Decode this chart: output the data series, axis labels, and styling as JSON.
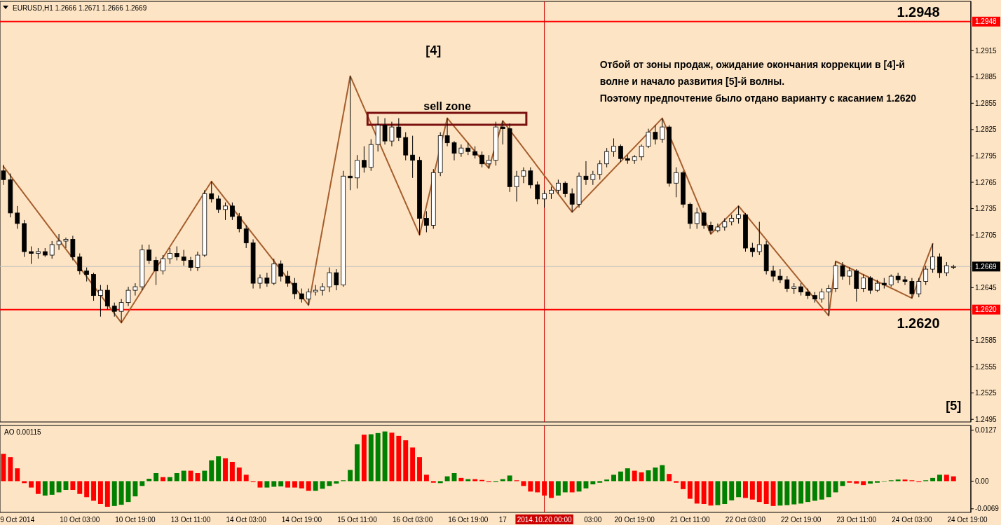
{
  "chart_data": [
    {
      "type": "candlestick",
      "title": "EURUSD,H1  1.2666 1.2671 1.2666 1.2669",
      "tick_labels": "y",
      "categories": [
        null,
        null,
        "9 Oct 2014",
        null,
        null,
        null,
        null,
        null,
        null,
        null,
        null,
        "10 Oct 03:00",
        null,
        null,
        null,
        null,
        null,
        null,
        null,
        "10 Oct 19:00",
        null,
        null,
        null,
        null,
        null,
        null,
        null,
        "13 Oct 11:00",
        null,
        null,
        null,
        null,
        null,
        null,
        null,
        "14 Oct 03:00",
        null,
        null,
        null,
        null,
        null,
        null,
        null,
        "14 Oct 19:00",
        null,
        null,
        null,
        null,
        null,
        null,
        null,
        "15 Oct 11:00",
        null,
        null,
        null,
        null,
        null,
        null,
        null,
        "16 Oct 03:00",
        null,
        null,
        null,
        null,
        null,
        null,
        null,
        "16 Oct 19:00",
        null,
        null,
        null,
        null,
        "17",
        null,
        null,
        null,
        null,
        null,
        "2014.10.20 00:00",
        null,
        null,
        null,
        null,
        null,
        null,
        "03:00",
        null,
        null,
        null,
        null,
        null,
        "20 Oct 19:00",
        null,
        null,
        null,
        null,
        null,
        null,
        null,
        "21 Oct 11:00",
        null,
        null,
        null,
        null,
        null,
        null,
        null,
        "22 Oct 03:00",
        null,
        null,
        null,
        null,
        null,
        null,
        null,
        "22 Oct 19:00",
        null,
        null,
        null,
        null,
        null,
        null,
        null,
        "23 Oct 11:00",
        null,
        null,
        null,
        null,
        null,
        null,
        null,
        "24 Oct 03:00",
        null,
        null,
        null,
        null,
        null,
        null,
        null,
        "24 Oct 19:00"
      ],
      "ohlc": [
        [
          1.2778,
          1.2785,
          1.2762,
          1.2768
        ],
        [
          1.2768,
          1.2775,
          1.2725,
          1.273
        ],
        [
          1.273,
          1.2738,
          1.2712,
          1.2718
        ],
        [
          1.2718,
          1.2722,
          1.268,
          1.2686
        ],
        [
          1.2686,
          1.2692,
          1.2672,
          1.2684
        ],
        [
          1.2684,
          1.269,
          1.2678,
          1.2686
        ],
        [
          1.2686,
          1.269,
          1.268,
          1.2682
        ],
        [
          1.2682,
          1.2698,
          1.2678,
          1.2694
        ],
        [
          1.2694,
          1.2706,
          1.2688,
          1.2698
        ],
        [
          1.2698,
          1.2702,
          1.269,
          1.27
        ],
        [
          1.27,
          1.2704,
          1.2676,
          1.268
        ],
        [
          1.268,
          1.2684,
          1.266,
          1.2664
        ],
        [
          1.2664,
          1.2668,
          1.2652,
          1.266
        ],
        [
          1.266,
          1.2662,
          1.263,
          1.2636
        ],
        [
          1.2636,
          1.2648,
          1.2612,
          1.2642
        ],
        [
          1.2642,
          1.2648,
          1.262,
          1.2624
        ],
        [
          1.2624,
          1.2628,
          1.2612,
          1.2618
        ],
        [
          1.2618,
          1.2632,
          1.2605,
          1.2628
        ],
        [
          1.2628,
          1.2646,
          1.2624,
          1.2642
        ],
        [
          1.2642,
          1.265,
          1.2636,
          1.2646
        ],
        [
          1.2646,
          1.2694,
          1.2642,
          1.2688
        ],
        [
          1.2688,
          1.2694,
          1.2672,
          1.2676
        ],
        [
          1.2676,
          1.268,
          1.2648,
          1.2664
        ],
        [
          1.2664,
          1.2682,
          1.266,
          1.2678
        ],
        [
          1.2678,
          1.269,
          1.2672,
          1.2684
        ],
        [
          1.2684,
          1.2692,
          1.2676,
          1.268
        ],
        [
          1.268,
          1.2688,
          1.267,
          1.2676
        ],
        [
          1.2676,
          1.268,
          1.2664,
          1.2668
        ],
        [
          1.2668,
          1.2686,
          1.2664,
          1.2682
        ],
        [
          1.2682,
          1.2756,
          1.268,
          1.2752
        ],
        [
          1.2752,
          1.2766,
          1.2742,
          1.2746
        ],
        [
          1.2746,
          1.275,
          1.273,
          1.2734
        ],
        [
          1.2734,
          1.2742,
          1.2722,
          1.2738
        ],
        [
          1.2738,
          1.2742,
          1.2722,
          1.2726
        ],
        [
          1.2726,
          1.273,
          1.2708,
          1.2712
        ],
        [
          1.2712,
          1.2716,
          1.269,
          1.2696
        ],
        [
          1.2696,
          1.27,
          1.2644,
          1.265
        ],
        [
          1.265,
          1.266,
          1.2644,
          1.2656
        ],
        [
          1.2656,
          1.2662,
          1.2646,
          1.265
        ],
        [
          1.265,
          1.2678,
          1.2648,
          1.2672
        ],
        [
          1.2672,
          1.2676,
          1.2652,
          1.2658
        ],
        [
          1.2658,
          1.2664,
          1.2646,
          1.265
        ],
        [
          1.265,
          1.2656,
          1.2632,
          1.2638
        ],
        [
          1.2638,
          1.2644,
          1.2628,
          1.2632
        ],
        [
          1.2632,
          1.2644,
          1.2625,
          1.264
        ],
        [
          1.264,
          1.2648,
          1.2636,
          1.2642
        ],
        [
          1.2642,
          1.265,
          1.2636,
          1.2646
        ],
        [
          1.2646,
          1.2668,
          1.264,
          1.2662
        ],
        [
          1.2662,
          1.2666,
          1.2642,
          1.2648
        ],
        [
          1.2648,
          1.2778,
          1.2646,
          1.2772
        ],
        [
          1.2772,
          1.2886,
          1.2756,
          1.277
        ],
        [
          1.277,
          1.2796,
          1.2758,
          1.279
        ],
        [
          1.279,
          1.2806,
          1.2776,
          1.2782
        ],
        [
          1.2782,
          1.2814,
          1.2778,
          1.2808
        ],
        [
          1.2808,
          1.284,
          1.28,
          1.283
        ],
        [
          1.283,
          1.2838,
          1.2808,
          1.2812
        ],
        [
          1.2812,
          1.2834,
          1.2806,
          1.2828
        ],
        [
          1.2828,
          1.2838,
          1.2812,
          1.2816
        ],
        [
          1.2816,
          1.2822,
          1.279,
          1.2796
        ],
        [
          1.2796,
          1.2818,
          1.277,
          1.279
        ],
        [
          1.279,
          1.2794,
          1.2705,
          1.2724
        ],
        [
          1.2724,
          1.2732,
          1.2708,
          1.2716
        ],
        [
          1.2716,
          1.278,
          1.2712,
          1.2776
        ],
        [
          1.2776,
          1.2822,
          1.2772,
          1.2818
        ],
        [
          1.2818,
          1.2838,
          1.2806,
          1.281
        ],
        [
          1.281,
          1.2812,
          1.279,
          1.2798
        ],
        [
          1.2798,
          1.2808,
          1.2794,
          1.2804
        ],
        [
          1.2804,
          1.281,
          1.2796,
          1.28
        ],
        [
          1.28,
          1.2806,
          1.2792,
          1.2796
        ],
        [
          1.2796,
          1.28,
          1.2782,
          1.2786
        ],
        [
          1.2786,
          1.2796,
          1.2781,
          1.279
        ],
        [
          1.279,
          1.2834,
          1.2784,
          1.2828
        ],
        [
          1.2828,
          1.2835,
          1.2808,
          1.2826
        ],
        [
          1.2826,
          1.2832,
          1.2754,
          1.276
        ],
        [
          1.276,
          1.2778,
          1.2743,
          1.2772
        ],
        [
          1.2772,
          1.2782,
          1.2764,
          1.2778
        ],
        [
          1.2778,
          1.2782,
          1.2758,
          1.2762
        ],
        [
          1.2762,
          1.2766,
          1.274,
          1.2746
        ],
        [
          1.2746,
          1.2756,
          1.2736,
          1.2752
        ],
        [
          1.2752,
          1.276,
          1.2746,
          1.2756
        ],
        [
          1.2756,
          1.2768,
          1.2752,
          1.2764
        ],
        [
          1.2764,
          1.2766,
          1.2748,
          1.2752
        ],
        [
          1.2752,
          1.2758,
          1.2731,
          1.274
        ],
        [
          1.274,
          1.2776,
          1.2736,
          1.2772
        ],
        [
          1.2772,
          1.2789,
          1.2762,
          1.2768
        ],
        [
          1.2768,
          1.2778,
          1.2762,
          1.2774
        ],
        [
          1.2774,
          1.279,
          1.2768,
          1.2786
        ],
        [
          1.2786,
          1.2804,
          1.2782,
          1.28
        ],
        [
          1.28,
          1.2815,
          1.2794,
          1.2806
        ],
        [
          1.2806,
          1.2808,
          1.2788,
          1.2792
        ],
        [
          1.2792,
          1.2796,
          1.2786,
          1.279
        ],
        [
          1.279,
          1.2796,
          1.2786,
          1.2794
        ],
        [
          1.2794,
          1.2808,
          1.279,
          1.2806
        ],
        [
          1.2806,
          1.2826,
          1.2804,
          1.2822
        ],
        [
          1.2822,
          1.283,
          1.2808,
          1.2814
        ],
        [
          1.2814,
          1.2838,
          1.281,
          1.2828
        ],
        [
          1.2828,
          1.283,
          1.276,
          1.2764
        ],
        [
          1.2764,
          1.2782,
          1.2748,
          1.2776
        ],
        [
          1.2776,
          1.2778,
          1.2736,
          1.274
        ],
        [
          1.274,
          1.2742,
          1.2712,
          1.2718
        ],
        [
          1.2718,
          1.2736,
          1.2712,
          1.273
        ],
        [
          1.273,
          1.2732,
          1.2712,
          1.2716
        ],
        [
          1.2716,
          1.272,
          1.2706,
          1.271
        ],
        [
          1.271,
          1.2718,
          1.2708,
          1.2714
        ],
        [
          1.2714,
          1.2724,
          1.271,
          1.272
        ],
        [
          1.272,
          1.2728,
          1.2716,
          1.2724
        ],
        [
          1.2724,
          1.2738,
          1.2718,
          1.2728
        ],
        [
          1.2728,
          1.273,
          1.2686,
          1.269
        ],
        [
          1.269,
          1.2696,
          1.268,
          1.2686
        ],
        [
          1.2686,
          1.272,
          1.2682,
          1.2694
        ],
        [
          1.2694,
          1.2698,
          1.266,
          1.2664
        ],
        [
          1.2664,
          1.267,
          1.2652,
          1.2658
        ],
        [
          1.2658,
          1.2666,
          1.265,
          1.2654
        ],
        [
          1.2654,
          1.2658,
          1.264,
          1.2644
        ],
        [
          1.2644,
          1.265,
          1.2638,
          1.2646
        ],
        [
          1.2646,
          1.265,
          1.2636,
          1.264
        ],
        [
          1.264,
          1.2644,
          1.2632,
          1.2636
        ],
        [
          1.2636,
          1.264,
          1.2628,
          1.2632
        ],
        [
          1.2632,
          1.2644,
          1.2628,
          1.264
        ],
        [
          1.264,
          1.2648,
          1.2613,
          1.2644
        ],
        [
          1.2644,
          1.2675,
          1.264,
          1.267
        ],
        [
          1.267,
          1.2674,
          1.2654,
          1.2658
        ],
        [
          1.2658,
          1.2668,
          1.2648,
          1.2664
        ],
        [
          1.2664,
          1.2666,
          1.2629,
          1.2644
        ],
        [
          1.2644,
          1.266,
          1.264,
          1.2656
        ],
        [
          1.2656,
          1.2658,
          1.2638,
          1.2642
        ],
        [
          1.2642,
          1.2654,
          1.264,
          1.265
        ],
        [
          1.265,
          1.2656,
          1.2644,
          1.2648
        ],
        [
          1.2648,
          1.266,
          1.2646,
          1.2658
        ],
        [
          1.2658,
          1.2662,
          1.265,
          1.2654
        ],
        [
          1.2654,
          1.2658,
          1.2648,
          1.2652
        ],
        [
          1.2652,
          1.2656,
          1.2633,
          1.2638
        ],
        [
          1.2638,
          1.2656,
          1.2634,
          1.2652
        ],
        [
          1.2652,
          1.267,
          1.2648,
          1.2666
        ],
        [
          1.2666,
          1.2695,
          1.2662,
          1.268
        ],
        [
          1.268,
          1.2684,
          1.2656,
          1.2662
        ],
        [
          1.2662,
          1.2674,
          1.2658,
          1.267
        ],
        [
          1.2668,
          1.2671,
          1.2666,
          1.2669
        ],
        null,
        null
      ],
      "series": [
        {
          "type": "line",
          "color": "#a65e2e",
          "values": [
            1.2783,
            null,
            null,
            null,
            null,
            null,
            null,
            null,
            null,
            null,
            null,
            null,
            null,
            null,
            null,
            null,
            null,
            1.2605,
            null,
            null,
            null,
            null,
            null,
            null,
            null,
            null,
            null,
            null,
            null,
            null,
            1.2766,
            null,
            null,
            null,
            null,
            null,
            null,
            null,
            null,
            null,
            null,
            null,
            null,
            null,
            1.2625,
            null,
            null,
            null,
            null,
            null,
            1.2886,
            null,
            null,
            null,
            null,
            null,
            null,
            null,
            null,
            null,
            1.2705,
            null,
            null,
            null,
            1.2838,
            null,
            null,
            null,
            null,
            null,
            1.2781,
            null,
            1.2835,
            null,
            null,
            null,
            null,
            null,
            null,
            null,
            null,
            null,
            1.2731,
            null,
            null,
            null,
            null,
            null,
            null,
            null,
            null,
            null,
            null,
            null,
            null,
            1.2838,
            null,
            null,
            null,
            null,
            null,
            null,
            1.2706,
            null,
            null,
            null,
            1.2738,
            null,
            null,
            null,
            null,
            null,
            null,
            null,
            null,
            null,
            null,
            null,
            null,
            1.2613,
            1.2675,
            null,
            null,
            null,
            null,
            null,
            null,
            null,
            null,
            null,
            null,
            1.2633,
            null,
            null,
            1.2695,
            null,
            null,
            null,
            null,
            null
          ]
        }
      ],
      "ylim": [
        1.2492,
        1.2971
      ],
      "yticks": [
        1.2495,
        1.2525,
        1.2555,
        1.2585,
        1.2645,
        1.2705,
        1.2735,
        1.2765,
        1.2795,
        1.2825,
        1.2855,
        1.2885,
        1.2915
      ],
      "ref_lines": [
        {
          "axis": "y",
          "value": 1.2948,
          "label": "1.2948",
          "color": "#ff0000"
        },
        {
          "axis": "y",
          "value": 1.262,
          "label": "1.2620",
          "color": "#ff0000"
        },
        {
          "axis": "y",
          "value": 1.2669,
          "label": "1.2669",
          "color": "#c0c0c0"
        },
        {
          "axis": "x",
          "value": "2014.10.20 00:00",
          "color": "#cc0000"
        }
      ],
      "annotations": [
        "[4]",
        "sell zone",
        "Отбой от зоны продаж, ожидание окончания коррекции в [4]-й\nволне и начало развития [5]-й волны.\nПоэтому предпочтение было отдано варианту с касанием 1.2620",
        "[5]",
        "1.2948",
        "1.2620"
      ]
    },
    {
      "type": "bar",
      "title": "AO 0.00115",
      "categories": [
        null,
        null,
        "9 Oct 2014",
        null,
        null,
        null,
        null,
        null,
        null,
        null,
        null,
        "10 Oct 03:00",
        null,
        null,
        null,
        null,
        null,
        null,
        null,
        "10 Oct 19:00",
        null,
        null,
        null,
        null,
        null,
        null,
        null,
        "13 Oct 11:00",
        null,
        null,
        null,
        null,
        null,
        null,
        null,
        "14 Oct 03:00",
        null,
        null,
        null,
        null,
        null,
        null,
        null,
        "14 Oct 19:00",
        null,
        null,
        null,
        null,
        null,
        null,
        null,
        "15 Oct 11:00",
        null,
        null,
        null,
        null,
        null,
        null,
        null,
        "16 Oct 03:00",
        null,
        null,
        null,
        null,
        null,
        null,
        null,
        "16 Oct 19:00",
        null,
        null,
        null,
        null,
        "17",
        null,
        null,
        null,
        null,
        null,
        "2014.10.20 00:00",
        null,
        null,
        null,
        null,
        null,
        null,
        "03:00",
        null,
        null,
        null,
        null,
        null,
        "20 Oct 19:00",
        null,
        null,
        null,
        null,
        null,
        null,
        null,
        "21 Oct 11:00",
        null,
        null,
        null,
        null,
        null,
        null,
        null,
        "22 Oct 03:00",
        null,
        null,
        null,
        null,
        null,
        null,
        null,
        "22 Oct 19:00",
        null,
        null,
        null,
        null,
        null,
        null,
        null,
        "23 Oct 11:00",
        null,
        null,
        null,
        null,
        null,
        null,
        null,
        "24 Oct 03:00",
        null,
        null,
        null,
        null,
        null,
        null,
        null,
        "24 Oct 19:00"
      ],
      "values": [
        0.0068,
        0.006,
        0.0032,
        -0.0005,
        -0.0016,
        -0.0032,
        -0.0036,
        -0.0034,
        -0.0028,
        -0.0022,
        -0.0022,
        -0.0032,
        -0.004,
        -0.0049,
        -0.0057,
        -0.0064,
        -0.0062,
        -0.0059,
        -0.0052,
        -0.0038,
        -0.0012,
        0.0006,
        0.002,
        0.001,
        0.001,
        0.002,
        0.0026,
        0.0026,
        0.002,
        0.0026,
        0.0052,
        0.0062,
        0.0057,
        0.0048,
        0.0034,
        0.0016,
        -0.0002,
        -0.0016,
        -0.0016,
        -0.0014,
        -0.0013,
        -0.0016,
        -0.0016,
        -0.0018,
        -0.0024,
        -0.0024,
        -0.0019,
        -0.0012,
        -0.0006,
        0.0002,
        0.0028,
        0.0092,
        0.0116,
        0.0117,
        0.012,
        0.0124,
        0.0121,
        0.0113,
        0.0102,
        0.0084,
        0.006,
        0.0016,
        -0.0004,
        -0.0005,
        0.0012,
        0.002,
        0.0008,
        0.0005,
        0.0005,
        0.0003,
        -0.0002,
        -0.0002,
        0.0005,
        0.0014,
        0.0002,
        -0.0012,
        -0.0026,
        -0.0028,
        -0.0036,
        -0.0042,
        -0.0036,
        -0.0028,
        -0.0028,
        -0.0026,
        -0.0018,
        -0.0008,
        -0.0004,
        0.0004,
        0.0016,
        0.0024,
        0.0032,
        0.0026,
        0.0022,
        0.0027,
        0.0034,
        0.004,
        0.0018,
        -0.0004,
        -0.002,
        -0.0044,
        -0.0056,
        -0.0057,
        -0.0061,
        -0.006,
        -0.0057,
        -0.0048,
        -0.004,
        -0.0042,
        -0.0046,
        -0.0052,
        -0.0057,
        -0.0062,
        -0.0061,
        -0.006,
        -0.0058,
        -0.0056,
        -0.0052,
        -0.0049,
        -0.0046,
        -0.004,
        -0.0028,
        -0.0012,
        -0.0004,
        -0.0006,
        -0.001,
        -0.0006,
        -0.0004,
        -0.0001,
        0.0002,
        0.0004,
        0.0004,
        0.0002,
        -0.0002,
        0.0002,
        0.0008,
        0.0016,
        0.0016,
        0.0012,
        null,
        null
      ],
      "colors": [
        "#ff0000",
        "#ff0000",
        "#ff0000",
        "#ff0000",
        "#ff0000",
        "#ff0000",
        "#008000",
        "#008000",
        "#008000",
        "#008000",
        "#ff0000",
        "#ff0000",
        "#ff0000",
        "#ff0000",
        "#ff0000",
        "#ff0000",
        "#008000",
        "#008000",
        "#008000",
        "#008000",
        "#008000",
        "#008000",
        "#008000",
        "#ff0000",
        "#008000",
        "#008000",
        "#008000",
        "#ff0000",
        "#ff0000",
        "#008000",
        "#008000",
        "#008000",
        "#ff0000",
        "#ff0000",
        "#ff0000",
        "#ff0000",
        "#ff0000",
        "#ff0000",
        "#008000",
        "#008000",
        "#008000",
        "#ff0000",
        "#ff0000",
        "#ff0000",
        "#ff0000",
        "#008000",
        "#008000",
        "#008000",
        "#008000",
        "#008000",
        "#008000",
        "#008000",
        "#ff0000",
        "#008000",
        "#008000",
        "#008000",
        "#ff0000",
        "#ff0000",
        "#ff0000",
        "#ff0000",
        "#ff0000",
        "#ff0000",
        "#ff0000",
        "#008000",
        "#008000",
        "#008000",
        "#ff0000",
        "#008000",
        "#ff0000",
        "#ff0000",
        "#ff0000",
        "#008000",
        "#008000",
        "#008000",
        "#ff0000",
        "#ff0000",
        "#ff0000",
        "#ff0000",
        "#ff0000",
        "#ff0000",
        "#008000",
        "#008000",
        "#ff0000",
        "#008000",
        "#008000",
        "#008000",
        "#008000",
        "#008000",
        "#008000",
        "#008000",
        "#008000",
        "#ff0000",
        "#ff0000",
        "#008000",
        "#008000",
        "#008000",
        "#ff0000",
        "#ff0000",
        "#ff0000",
        "#ff0000",
        "#ff0000",
        "#ff0000",
        "#ff0000",
        "#008000",
        "#008000",
        "#008000",
        "#008000",
        "#ff0000",
        "#ff0000",
        "#ff0000",
        "#ff0000",
        "#ff0000",
        "#008000",
        "#008000",
        "#008000",
        "#008000",
        "#008000",
        "#008000",
        "#008000",
        "#008000",
        "#008000",
        "#008000",
        "#ff0000",
        "#ff0000",
        "#ff0000",
        "#008000",
        "#008000",
        "#008000",
        "#008000",
        "#008000",
        "#ff0000",
        "#ff0000",
        "#ff0000",
        "#008000",
        "#008000",
        "#008000",
        "#ff0000",
        "#ff0000",
        null,
        null
      ],
      "ylim": [
        -0.0078,
        0.0139
      ],
      "yticks": [
        0.0127,
        {
          "value": 0,
          "label": "0.00"
        },
        -0.0069
      ],
      "ref_lines": [
        {
          "axis": "x",
          "value": "2014.10.20 00:00",
          "color": "#cc0000"
        }
      ]
    }
  ]
}
